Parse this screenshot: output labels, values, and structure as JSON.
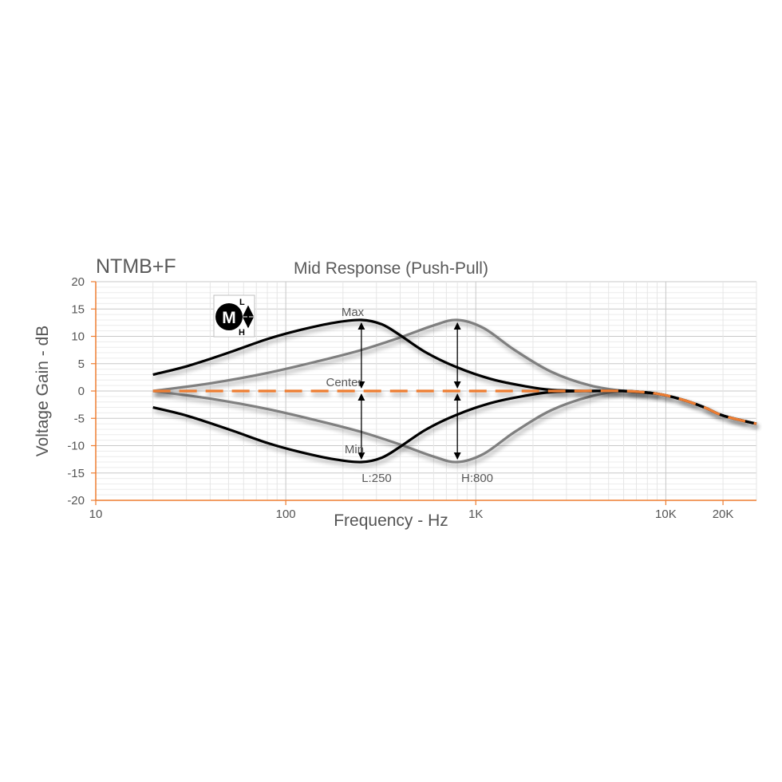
{
  "header": {
    "brand": "NTMB+F"
  },
  "badge": {
    "icon": "mid-knob-icon",
    "letter": "M",
    "top_label": "L",
    "bottom_label": "H"
  },
  "colors": {
    "low_curves": "#000000",
    "high_curves": "#7f7f7f",
    "center_curve": "#ed7d31",
    "axis": "#ed7d31",
    "grid": "#d9d9d9"
  },
  "annotations": {
    "max": "Max",
    "center": "Center",
    "min": "Min",
    "low_freq": "L:250",
    "high_freq": "H:800"
  },
  "chart_data": {
    "type": "line",
    "title": "Mid Response (Push-Pull)",
    "xlabel": "Frequency - Hz",
    "ylabel": "Voltage Gain - dB",
    "xscale": "log",
    "xlim": [
      10,
      30000
    ],
    "ylim": [
      -20,
      20
    ],
    "yticks": [
      20,
      15,
      10,
      5,
      0,
      -5,
      -10,
      -15,
      -20
    ],
    "xticks": [
      {
        "value": 10,
        "label": "10"
      },
      {
        "value": 100,
        "label": "100"
      },
      {
        "value": 1000,
        "label": "1K"
      },
      {
        "value": 10000,
        "label": "10K"
      },
      {
        "value": 20000,
        "label": "20K"
      }
    ],
    "grid": true,
    "series": [
      {
        "key": "low_max",
        "color": "#000000",
        "dashed": false,
        "x": [
          20,
          30,
          50,
          80,
          120,
          180,
          250,
          320,
          400,
          550,
          800,
          1200,
          1800,
          2500,
          4000,
          6000,
          9000,
          12000,
          16000,
          20000,
          30000
        ],
        "y": [
          3,
          4.5,
          7,
          9.5,
          11.2,
          12.5,
          13,
          12.2,
          10.2,
          7,
          4.3,
          2.2,
          0.9,
          0.2,
          0,
          0,
          -0.5,
          -1.5,
          -3,
          -4.5,
          -6
        ]
      },
      {
        "key": "low_min",
        "color": "#000000",
        "dashed": false,
        "x": [
          20,
          30,
          50,
          80,
          120,
          180,
          250,
          320,
          400,
          550,
          800,
          1200,
          1800,
          2500,
          4000,
          6000,
          9000,
          12000,
          16000,
          20000,
          30000
        ],
        "y": [
          -3,
          -4.5,
          -7,
          -9.5,
          -11.2,
          -12.5,
          -13,
          -12.2,
          -10.2,
          -7,
          -4.3,
          -2.2,
          -0.9,
          -0.2,
          0,
          0,
          -0.5,
          -1.5,
          -3,
          -4.5,
          -6
        ]
      },
      {
        "key": "high_max",
        "color": "#7f7f7f",
        "dashed": false,
        "x": [
          20,
          40,
          80,
          150,
          250,
          400,
          600,
          800,
          1100,
          1600,
          2500,
          4000,
          6000,
          9000
        ],
        "y": [
          0,
          1.4,
          3.3,
          5.5,
          7.5,
          9.8,
          12,
          13,
          11.5,
          7.5,
          3.5,
          1,
          0,
          -0.5
        ]
      },
      {
        "key": "high_min",
        "color": "#7f7f7f",
        "dashed": false,
        "x": [
          20,
          40,
          80,
          150,
          250,
          400,
          600,
          800,
          1100,
          1600,
          2500,
          4000,
          6000,
          9000
        ],
        "y": [
          0,
          -1.4,
          -3.3,
          -5.5,
          -7.5,
          -9.8,
          -12,
          -13,
          -11.5,
          -7.5,
          -3.5,
          -1,
          0,
          -0.5
        ]
      },
      {
        "key": "center",
        "color": "#ed7d31",
        "dashed": true,
        "x": [
          20,
          100,
          1000,
          3000,
          6000,
          9000,
          12000,
          16000,
          20000,
          30000
        ],
        "y": [
          0,
          0,
          0,
          0,
          0,
          -0.5,
          -1.5,
          -3,
          -4.5,
          -6
        ]
      }
    ],
    "arrows": [
      {
        "x": 250,
        "y_from": 0,
        "y_to": 13
      },
      {
        "x": 250,
        "y_from": 0,
        "y_to": -13
      },
      {
        "x": 800,
        "y_from": 0,
        "y_to": 13
      },
      {
        "x": 800,
        "y_from": 0,
        "y_to": -13
      }
    ]
  }
}
